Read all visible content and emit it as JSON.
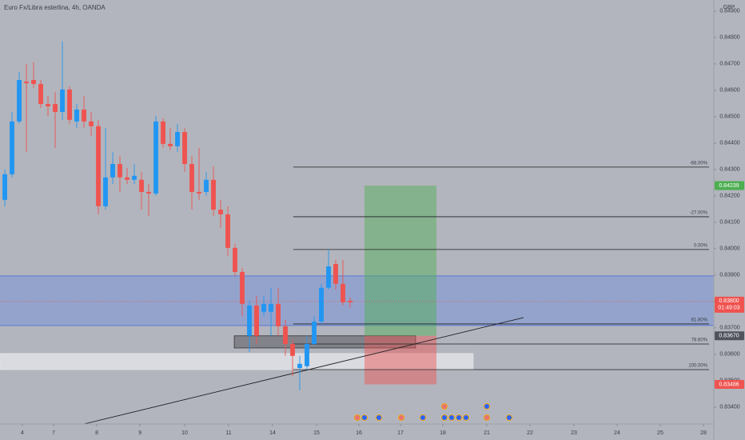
{
  "chart_data": {
    "type": "candlestick",
    "title": "Euro Fx/Libra esterlina, 4h, OANDA",
    "currency": "GBP",
    "up_color": "#2196f3",
    "down_color": "#ef5350",
    "x": [
      0,
      1,
      2,
      3,
      4,
      5,
      6,
      7,
      8,
      9,
      10,
      11,
      12,
      13,
      14,
      15,
      16,
      17,
      18,
      19,
      20,
      21,
      22,
      23,
      24,
      25,
      26,
      27,
      28,
      29,
      30,
      31,
      32,
      33,
      34,
      35,
      36,
      37,
      38,
      39,
      40,
      41,
      42,
      43,
      44,
      45,
      46,
      47,
      48
    ],
    "open": [
      0.84185,
      0.84282,
      0.84482,
      0.84633,
      0.84639,
      0.84624,
      0.84548,
      0.84548,
      0.84518,
      0.84603,
      0.84482,
      0.84527,
      0.84482,
      0.84464,
      0.84161,
      0.8427,
      0.84321,
      0.8427,
      0.84261,
      0.84261,
      0.84215,
      0.84209,
      0.84482,
      0.84397,
      0.84388,
      0.84442,
      0.84321,
      0.84215,
      0.84215,
      0.84261,
      0.84148,
      0.8413,
      0.84003,
      0.83912,
      0.8367,
      0.83785,
      0.83761,
      0.83761,
      0.83791,
      0.83706,
      0.83639,
      0.83548,
      0.83555,
      0.83639,
      0.83724,
      0.83852,
      0.83942,
      0.83867,
      0.83803
    ],
    "high": [
      0.843,
      0.84518,
      0.8467,
      0.847,
      0.84706,
      0.84639,
      0.84579,
      0.84594,
      0.84785,
      0.84615,
      0.84548,
      0.84579,
      0.84518,
      0.84488,
      0.84458,
      0.84367,
      0.84352,
      0.84306,
      0.84321,
      0.84291,
      0.84245,
      0.84503,
      0.84494,
      0.84458,
      0.84473,
      0.84458,
      0.84352,
      0.84382,
      0.84291,
      0.84312,
      0.84185,
      0.84161,
      0.84018,
      0.83927,
      0.83806,
      0.83821,
      0.83821,
      0.83852,
      0.83852,
      0.8373,
      0.83655,
      0.83594,
      0.8367,
      0.83745,
      0.83867,
      0.83997,
      0.83958,
      0.83958,
      0.83815
    ],
    "low": [
      0.84161,
      0.8427,
      0.84473,
      0.84367,
      0.84609,
      0.84533,
      0.84503,
      0.84382,
      0.84488,
      0.84473,
      0.84458,
      0.84458,
      0.84427,
      0.8413,
      0.84148,
      0.84245,
      0.84215,
      0.84245,
      0.84245,
      0.84148,
      0.84124,
      0.842,
      0.84382,
      0.84373,
      0.84367,
      0.84291,
      0.84148,
      0.84185,
      0.842,
      0.84124,
      0.84079,
      0.83973,
      0.83897,
      0.83745,
      0.83609,
      0.83639,
      0.83745,
      0.8367,
      0.8367,
      0.83594,
      0.83518,
      0.83464,
      0.83542,
      0.83633,
      0.83715,
      0.83845,
      0.83845,
      0.83785,
      0.83776
    ],
    "close": [
      0.84282,
      0.84482,
      0.84639,
      0.84627,
      0.84624,
      0.84548,
      0.84539,
      0.84518,
      0.84603,
      0.84488,
      0.84527,
      0.84482,
      0.84464,
      0.84161,
      0.8427,
      0.84321,
      0.8427,
      0.84261,
      0.84276,
      0.84215,
      0.84209,
      0.84482,
      0.84397,
      0.84388,
      0.84442,
      0.84321,
      0.84215,
      0.84209,
      0.84261,
      0.84148,
      0.8413,
      0.84003,
      0.83912,
      0.83791,
      0.83785,
      0.8367,
      0.83791,
      0.83791,
      0.83706,
      0.83639,
      0.83594,
      0.83564,
      0.83639,
      0.83724,
      0.83852,
      0.83933,
      0.83867,
      0.83797,
      0.83797
    ],
    "xlim": [
      -0.67,
      98.56
    ],
    "xticks": [
      {
        "value": 2.44,
        "label": "4"
      },
      {
        "value": 6.78,
        "label": "7"
      },
      {
        "value": 12.78,
        "label": "8"
      },
      {
        "value": 18.78,
        "label": "9"
      },
      {
        "value": 25,
        "label": "10"
      },
      {
        "value": 31.11,
        "label": "11"
      },
      {
        "value": 37.22,
        "label": "14"
      },
      {
        "value": 43.33,
        "label": "15"
      },
      {
        "value": 49.22,
        "label": "16"
      },
      {
        "value": 55,
        "label": "17"
      },
      {
        "value": 60.89,
        "label": "18"
      },
      {
        "value": 67,
        "label": "21"
      },
      {
        "value": 73,
        "label": "22"
      },
      {
        "value": 79.11,
        "label": "23"
      },
      {
        "value": 85.11,
        "label": "24"
      },
      {
        "value": 91.11,
        "label": "25"
      },
      {
        "value": 97.11,
        "label": "28"
      }
    ],
    "ylim": [
      0.83336,
      0.84942
    ],
    "yticks": [
      {
        "value": 0.834,
        "label": "0.83400"
      },
      {
        "value": 0.835,
        "label": "0.83500"
      },
      {
        "value": 0.836,
        "label": "0.83600"
      },
      {
        "value": 0.837,
        "label": "0.83700"
      },
      {
        "value": 0.838,
        "label": "0.83800"
      },
      {
        "value": 0.839,
        "label": "0.83900"
      },
      {
        "value": 0.84,
        "label": "0.84000"
      },
      {
        "value": 0.841,
        "label": "0.84100"
      },
      {
        "value": 0.842,
        "label": "0.84200"
      },
      {
        "value": 0.843,
        "label": "0.84300"
      },
      {
        "value": 0.844,
        "label": "0.84400"
      },
      {
        "value": 0.845,
        "label": "0.84500"
      },
      {
        "value": 0.846,
        "label": "0.84600"
      },
      {
        "value": 0.847,
        "label": "0.84700"
      },
      {
        "value": 0.848,
        "label": "0.84800"
      },
      {
        "value": 0.849,
        "label": "0.84900"
      }
    ],
    "zones": [
      {
        "y": [
          0.83709,
          0.83897
        ],
        "color": "rgba(41,98,255,0.22)",
        "border": "#5b7bd6"
      }
    ],
    "boxes": [
      {
        "x": [
          31.9,
          57.1
        ],
        "y": [
          0.83624,
          0.8367
        ],
        "color": "rgba(70,70,75,0.45)",
        "border": "#333"
      },
      {
        "x": [
          -0.67,
          65.1
        ],
        "y": [
          0.83542,
          0.83603
        ],
        "color": "rgba(230,232,236,0.75)",
        "border": "#dfe1e5"
      }
    ],
    "price_line": {
      "value": 0.838,
      "label": "0.83800",
      "countdown": "01:49:03",
      "color": "#ef5350"
    },
    "fib": {
      "x": [
        40.1,
        97.9
      ],
      "color": "#1e1f24",
      "levels": [
        {
          "value": 0.84309,
          "label": "-68.00%"
        },
        {
          "value": 0.84121,
          "label": "-27.00%"
        },
        {
          "value": 0.83997,
          "label": "0.00%"
        },
        {
          "value": 0.83715,
          "label": "61.80%"
        },
        {
          "value": 0.83639,
          "label": "78.60%"
        },
        {
          "value": 0.83542,
          "label": "100.00%"
        }
      ]
    },
    "position": {
      "x": [
        50,
        60
      ],
      "target": 0.84239,
      "entry": {
        "value": 0.8367,
        "label": "0.83670"
      },
      "stop": 0.83486,
      "target_color": "#4caf50",
      "stop_color": "#ef5350",
      "entry_color": "#50535e"
    },
    "trendline": {
      "x": [
        11,
        72.1
      ],
      "y": [
        0.83336,
        0.83739
      ],
      "color": "#1e1f24"
    }
  }
}
